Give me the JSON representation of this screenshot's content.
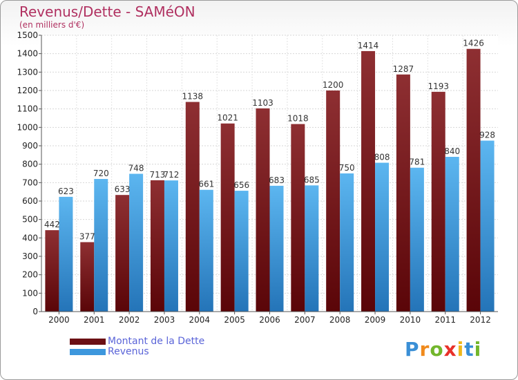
{
  "header": {
    "title": "Revenus/Dette - SAMéON",
    "subtitle": "(en milliers d'€)"
  },
  "legend": {
    "items": [
      {
        "label": "Montant de la Dette",
        "color": "#6b0f14"
      },
      {
        "label": "Revenus",
        "color": "#3d97dd"
      }
    ]
  },
  "branding": {
    "logo_letters": [
      {
        "ch": "P",
        "color": "#3a8fd6"
      },
      {
        "ch": "r",
        "color": "#f08a1c"
      },
      {
        "ch": "o",
        "color": "#72b62c"
      },
      {
        "ch": "x",
        "color": "#e8312a"
      },
      {
        "ch": "i",
        "color": "#f0b81c"
      },
      {
        "ch": "t",
        "color": "#3a8fd6"
      },
      {
        "ch": "i",
        "color": "#72b62c"
      }
    ]
  },
  "chart_data": {
    "type": "bar",
    "title": "Revenus/Dette - SAMéON",
    "subtitle": "(en milliers d'€)",
    "categories": [
      "2000",
      "2001",
      "2002",
      "2003",
      "2004",
      "2005",
      "2006",
      "2007",
      "2008",
      "2009",
      "2010",
      "2011",
      "2012"
    ],
    "series": [
      {
        "name": "Montant de la Dette",
        "color": "#6b0f14",
        "values": [
          442,
          377,
          633,
          713,
          1138,
          1021,
          1103,
          1018,
          1200,
          1414,
          1287,
          1193,
          1426
        ]
      },
      {
        "name": "Revenus",
        "color": "#3d97dd",
        "values": [
          623,
          720,
          748,
          712,
          661,
          656,
          683,
          685,
          750,
          808,
          781,
          840,
          928
        ]
      }
    ],
    "ylim": [
      0,
      1500
    ],
    "yticks": [
      0,
      100,
      200,
      300,
      400,
      500,
      600,
      700,
      800,
      900,
      1000,
      1100,
      1200,
      1300,
      1400,
      1500
    ],
    "grid": true,
    "legend_position": "bottom-left"
  }
}
